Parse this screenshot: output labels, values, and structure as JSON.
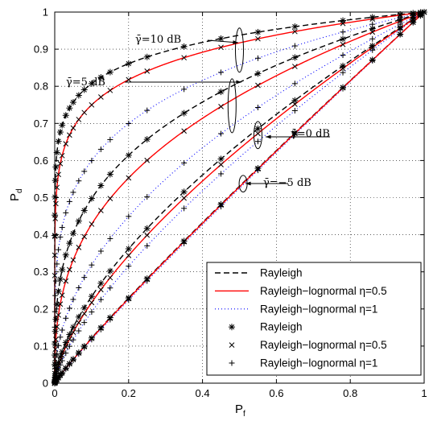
{
  "chart_data": {
    "type": "line",
    "xlabel": "P",
    "xlabel_sub": "f",
    "ylabel": "P",
    "ylabel_sub": "d",
    "xlim": [
      0,
      1
    ],
    "ylim": [
      0,
      1
    ],
    "xticks": [
      "0",
      "0.2",
      "0.4",
      "0.6",
      "0.8",
      "1"
    ],
    "yticks": [
      "0",
      "0.1",
      "0.2",
      "0.3",
      "0.4",
      "0.5",
      "0.6",
      "0.7",
      "0.8",
      "0.9",
      "1"
    ],
    "grid": true,
    "legend_position": "bottom-right",
    "legend": [
      {
        "label": "Rayleigh",
        "style": "dashed-line",
        "color": "#000000"
      },
      {
        "label": "Rayleigh−lognormal η=0.5",
        "style": "solid-line",
        "color": "#ff0000"
      },
      {
        "label": "Rayleigh−lognormal η=1",
        "style": "dotted-line",
        "color": "#0000ff"
      },
      {
        "label": "Rayleigh",
        "style": "asterisk-marker",
        "color": "#000000"
      },
      {
        "label": "Rayleigh−lognormal η=0.5",
        "style": "x-marker",
        "color": "#000000"
      },
      {
        "label": "Rayleigh−lognormal η=1",
        "style": "plus-marker",
        "color": "#000000"
      }
    ],
    "annotations": [
      {
        "text": "γ̄=10 dB",
        "snr": 10
      },
      {
        "text": "γ̄=5 dB",
        "snr": 5
      },
      {
        "text": "γ̄=0 dB",
        "snr": 0
      },
      {
        "text": "γ̄=−5 dB",
        "snr": -5
      }
    ],
    "series_groups": [
      {
        "snr_db": 10,
        "rayleigh_kappa": 0.093,
        "eta05_kappa": 0.125,
        "eta1_kappa": 0.222
      },
      {
        "snr_db": 5,
        "rayleigh_kappa": 0.303,
        "eta05_kappa": 0.368,
        "eta1_kappa": 0.497
      },
      {
        "snr_db": 0,
        "rayleigh_kappa": 0.631,
        "eta05_kappa": 0.663,
        "eta1_kappa": 0.717
      },
      {
        "snr_db": -5,
        "rayleigh_kappa": 0.914,
        "eta05_kappa": 0.919,
        "eta1_kappa": 0.93
      }
    ],
    "curve_model": "Pd = Pf ^ kappa"
  }
}
